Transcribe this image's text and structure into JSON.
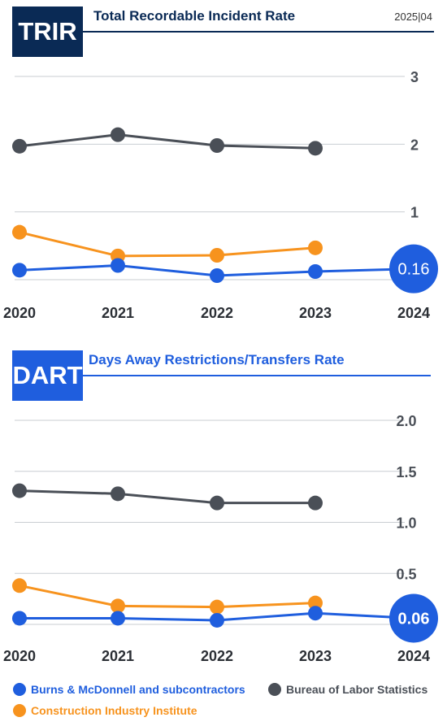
{
  "header": {
    "date": "2025|04"
  },
  "legend": [
    {
      "label": "Burns & McDonnell and subcontractors",
      "color": "#1f5ede"
    },
    {
      "label": "Bureau of Labor Statistics",
      "color": "#4a4f57"
    },
    {
      "label": "Construction Industry Institute",
      "color": "#f7931e"
    }
  ],
  "chart_data": [
    {
      "type": "line",
      "tag": "TRIR",
      "title": "Total Recordable Incident Rate",
      "categories": [
        "2020",
        "2021",
        "2022",
        "2023",
        "2024"
      ],
      "ylim": [
        0,
        3
      ],
      "yticks": [
        "1",
        "2",
        "3"
      ],
      "grid": true,
      "callout": "0.16",
      "series": [
        {
          "name": "Bureau of Labor Statistics",
          "color": "#4a4f57",
          "values": [
            1.97,
            2.14,
            1.98,
            1.94,
            null
          ]
        },
        {
          "name": "Construction Industry Institute",
          "color": "#f7931e",
          "values": [
            0.7,
            0.35,
            0.36,
            0.47,
            null
          ]
        },
        {
          "name": "Burns & McDonnell and subcontractors",
          "color": "#1f5ede",
          "values": [
            0.14,
            0.21,
            0.06,
            0.12,
            0.16
          ]
        }
      ]
    },
    {
      "type": "line",
      "tag": "DART",
      "title": "Days Away Restrictions/Transfers Rate",
      "categories": [
        "2020",
        "2021",
        "2022",
        "2023",
        "2024"
      ],
      "ylim": [
        0,
        2.0
      ],
      "yticks": [
        "0.5",
        "1.0",
        "1.5",
        "2.0"
      ],
      "grid": true,
      "callout": "0.06",
      "series": [
        {
          "name": "Bureau of Labor Statistics",
          "color": "#4a4f57",
          "values": [
            1.31,
            1.28,
            1.19,
            1.19,
            null
          ]
        },
        {
          "name": "Construction Industry Institute",
          "color": "#f7931e",
          "values": [
            0.38,
            0.18,
            0.17,
            0.21,
            null
          ]
        },
        {
          "name": "Burns & McDonnell and subcontractors",
          "color": "#1f5ede",
          "values": [
            0.06,
            0.06,
            0.04,
            0.11,
            0.06
          ]
        }
      ]
    }
  ]
}
